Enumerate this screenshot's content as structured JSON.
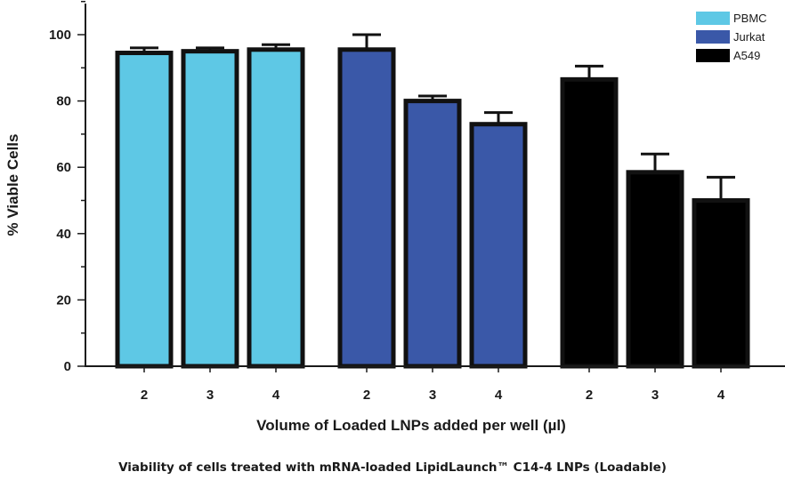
{
  "chart_data": {
    "type": "bar",
    "caption": "Viability of cells treated with mRNA-loaded LipidLaunch™ C14-4 LNPs (Loadable)",
    "xlabel": "Volume of Loaded LNPs added per well (µl)",
    "ylabel": "% Viable Cells",
    "ylim": [
      0,
      110
    ],
    "yticks": [
      0,
      20,
      40,
      60,
      80,
      100
    ],
    "grid": false,
    "legend_position": "top-right",
    "series": [
      {
        "name": "PBMC",
        "color": "#5ec8e5",
        "categories": [
          "2",
          "3",
          "4"
        ],
        "values": [
          94.5,
          95,
          95.5
        ],
        "errors": [
          1.5,
          1,
          1.5
        ]
      },
      {
        "name": "Jurkat",
        "color": "#3a58a8",
        "categories": [
          "2",
          "3",
          "4"
        ],
        "values": [
          95.5,
          80,
          73
        ],
        "errors": [
          4.5,
          1.5,
          3.5
        ]
      },
      {
        "name": "A549",
        "color": "#000000",
        "categories": [
          "2",
          "3",
          "4"
        ],
        "values": [
          86.5,
          58.5,
          50
        ],
        "errors": [
          4,
          5.5,
          7
        ]
      }
    ]
  }
}
